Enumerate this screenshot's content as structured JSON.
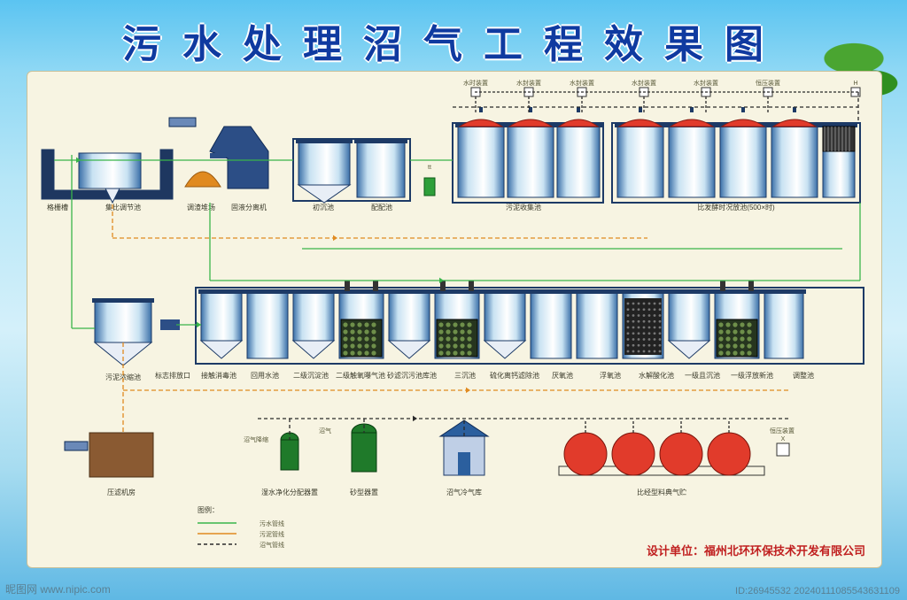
{
  "title": "污水处理沼气工程效果图",
  "panel_bg": "#f7f4e2",
  "colors": {
    "tank_light": "#c8e2f2",
    "tank_dark": "#3a6fa8",
    "tank_line": "#1d3a66",
    "dome": "#e13b2b",
    "house": "#2b5f9e",
    "green": "#2e9f3a",
    "orange": "#e08a20",
    "black": "#2a2a2a",
    "pipe_green": "#39b54a",
    "pipe_orange": "#e08a20",
    "pipe_black": "#2a2a2a",
    "brown": "#8a5a32"
  },
  "row1": {
    "labels": [
      "格栅槽",
      "集比调节池",
      "调渣堆场",
      "固液分离机",
      "初沉池",
      "配配池",
      "污泥收集池",
      "比发酵时况放池(500×时)"
    ],
    "small_top": [
      "水时装置",
      "水封装置",
      "水封装置",
      "水封装置",
      "水封装置",
      "恒压装置"
    ]
  },
  "row2": {
    "labels": [
      "标志排放口",
      "接触消毒池",
      "回用水池",
      "二级沉淀池",
      "二级触氧曝气池",
      "砂滤沉污池库池",
      "三沉池",
      "硫化离钙滤除池",
      "厌氧池",
      "浮氧池",
      "水解酸化池",
      "一级且沉池",
      "一级浮放新池",
      "调整池"
    ]
  },
  "row3": {
    "labels": [
      "污泥浓缩池",
      "压滤机房",
      "沼气降缩",
      "湿水净化分配器置",
      "砂型器置",
      "沼气冷气库",
      "比经型料典气贮"
    ],
    "mid": [
      "沼气"
    ]
  },
  "legend": {
    "title": "图例：",
    "items": [
      {
        "c": "#39b54a",
        "t": "污水管线"
      },
      {
        "c": "#e08a20",
        "t": "污泥管线"
      },
      {
        "c": "#2a2a2a",
        "dash": "4 3",
        "t": "沼气管线"
      }
    ]
  },
  "designer": "设计单位：福州北环环保技术开发有限公司",
  "watermark": "昵图网 www.nipic.com",
  "idtext": "ID:26945532  20240111085543631109"
}
